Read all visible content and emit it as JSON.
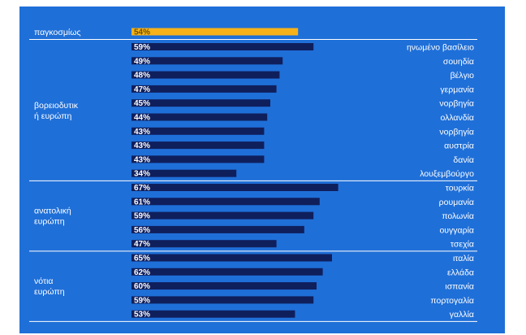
{
  "chart_data": {
    "type": "bar",
    "orientation": "horizontal",
    "title": "",
    "xlabel": "",
    "ylabel": "",
    "xlim": [
      0,
      100
    ],
    "grid": false,
    "legend": "none",
    "colors": {
      "background": "#1f6fd8",
      "bar": "#0f1f5c",
      "highlight": "#f7b21a",
      "text": "#ffffff",
      "rule": "#ffffff"
    },
    "global": {
      "label": "παγκοσμίως",
      "value": 54,
      "value_label": "54%"
    },
    "groups": [
      {
        "name": "βορειοδυτική ευρώπη",
        "name_lines": [
          "βορειοδυτικ",
          "ή ευρώπη"
        ],
        "items": [
          {
            "country": "ηνωμένο βασίλειο",
            "value": 59,
            "value_label": "59%"
          },
          {
            "country": "σουηδία",
            "value": 49,
            "value_label": "49%"
          },
          {
            "country": "βέλγιο",
            "value": 48,
            "value_label": "48%"
          },
          {
            "country": "γερμανία",
            "value": 47,
            "value_label": "47%"
          },
          {
            "country": "νορβηγία",
            "value": 45,
            "value_label": "45%"
          },
          {
            "country": "ολλανδία",
            "value": 44,
            "value_label": "44%"
          },
          {
            "country": "νορβηγία",
            "value": 43,
            "value_label": "43%"
          },
          {
            "country": "αυστρία",
            "value": 43,
            "value_label": "43%"
          },
          {
            "country": "δανία",
            "value": 43,
            "value_label": "43%"
          },
          {
            "country": "λουξεμβούργο",
            "value": 34,
            "value_label": "34%"
          }
        ]
      },
      {
        "name": "ανατολική ευρώπη",
        "name_lines": [
          "ανατολική",
          "ευρώπη"
        ],
        "items": [
          {
            "country": "τουρκία",
            "value": 67,
            "value_label": "67%"
          },
          {
            "country": "ρουμανία",
            "value": 61,
            "value_label": "61%"
          },
          {
            "country": "πολωνία",
            "value": 59,
            "value_label": "59%"
          },
          {
            "country": "ουγγαρία",
            "value": 56,
            "value_label": "56%"
          },
          {
            "country": "τσεχία",
            "value": 47,
            "value_label": "47%"
          }
        ]
      },
      {
        "name": "νότια ευρώπη",
        "name_lines": [
          "νότια",
          "ευρώπη"
        ],
        "items": [
          {
            "country": "ιταλία",
            "value": 65,
            "value_label": "65%"
          },
          {
            "country": "ελλάδα",
            "value": 62,
            "value_label": "62%"
          },
          {
            "country": "ισπανία",
            "value": 60,
            "value_label": "60%"
          },
          {
            "country": "πορτογαλία",
            "value": 59,
            "value_label": "59%"
          },
          {
            "country": "γαλλία",
            "value": 53,
            "value_label": "53%"
          }
        ]
      }
    ]
  }
}
